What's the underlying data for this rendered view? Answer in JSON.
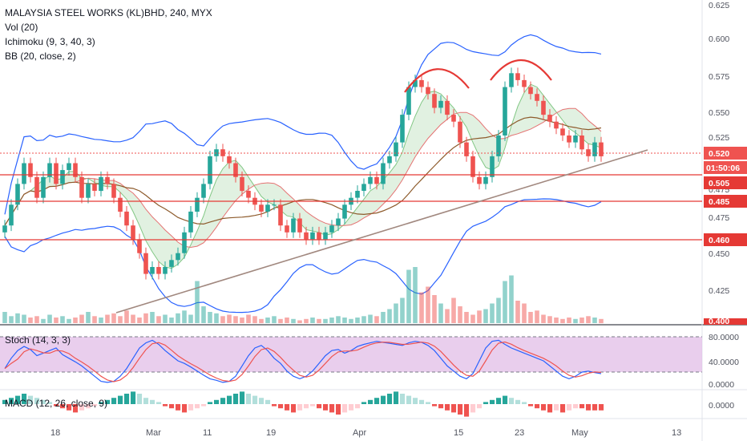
{
  "colors": {
    "up": "#26a69a",
    "down": "#ef5350",
    "bb": "#2962ff",
    "bb_basis": "#8d5a2b",
    "cloud_green": "#c8e6c9",
    "cloud_red": "#ffcdd2",
    "stoch_band": "#e1bee7",
    "support_line": "#e53935",
    "trend_line": "#a1887f",
    "head_shoulder": "#e53935",
    "price_tag": "#ef5350"
  },
  "legend": {
    "symbol": "MALAYSIA STEEL WORKS (KL)BHD, 240, MYX",
    "vol": "Vol (20)",
    "ichimoku": "Ichimoku (9, 3, 40, 3)",
    "bb": "BB (20, close, 2)"
  },
  "panes": {
    "stoch_label": "Stoch (14, 3, 3)",
    "macd_label": "MACD (12, 26, close, 9)"
  },
  "price_axis": [
    "0.625",
    "0.600",
    "0.575",
    "0.550",
    "0.525",
    "0.500",
    "0.475",
    "0.450",
    "0.425",
    "0.400"
  ],
  "price_tags": [
    {
      "label": "0.520",
      "value": 0.52
    },
    {
      "label": "01:50:06",
      "value": 0.512
    },
    {
      "label": "0.505",
      "value": 0.505
    },
    {
      "label": "0.485",
      "value": 0.485
    },
    {
      "label": "0.460",
      "value": 0.46
    }
  ],
  "stoch_axis": [
    "80.0000",
    "40.0000",
    "0.0000"
  ],
  "macd_axis": [
    "0.0000"
  ],
  "x_axis": [
    "18",
    "Mar",
    "11",
    "19",
    "Apr",
    "15",
    "23",
    "May",
    "13"
  ],
  "chart_data": {
    "type": "candlestick",
    "title": "MALAYSIA STEEL WORKS (KL)BHD, 240, MYX",
    "ylim": [
      0.4,
      0.63
    ],
    "horizontal_levels": [
      0.505,
      0.485,
      0.46
    ],
    "last_price": 0.52,
    "ohlc_close": [
      0.47,
      0.485,
      0.5,
      0.515,
      0.505,
      0.49,
      0.505,
      0.515,
      0.5,
      0.51,
      0.515,
      0.505,
      0.49,
      0.5,
      0.495,
      0.505,
      0.5,
      0.49,
      0.48,
      0.47,
      0.46,
      0.45,
      0.435,
      0.44,
      0.435,
      0.44,
      0.445,
      0.45,
      0.465,
      0.48,
      0.49,
      0.5,
      0.52,
      0.525,
      0.52,
      0.515,
      0.505,
      0.495,
      0.49,
      0.485,
      0.48,
      0.485,
      0.485,
      0.47,
      0.465,
      0.475,
      0.465,
      0.46,
      0.465,
      0.46,
      0.465,
      0.47,
      0.475,
      0.485,
      0.49,
      0.495,
      0.5,
      0.505,
      0.5,
      0.515,
      0.52,
      0.53,
      0.55,
      0.57,
      0.575,
      0.57,
      0.565,
      0.555,
      0.56,
      0.55,
      0.545,
      0.53,
      0.52,
      0.505,
      0.5,
      0.505,
      0.52,
      0.535,
      0.57,
      0.58,
      0.575,
      0.57,
      0.565,
      0.56,
      0.55,
      0.545,
      0.54,
      0.535,
      0.53,
      0.535,
      0.525,
      0.52,
      0.53,
      0.52
    ],
    "volume": [
      8,
      5,
      7,
      6,
      4,
      5,
      3,
      6,
      4,
      5,
      3,
      4,
      6,
      8,
      5,
      4,
      6,
      7,
      5,
      9,
      6,
      4,
      7,
      8,
      5,
      6,
      4,
      7,
      9,
      6,
      30,
      12,
      8,
      7,
      5,
      6,
      5,
      4,
      6,
      5,
      3,
      4,
      5,
      3,
      4,
      3,
      2,
      3,
      4,
      3,
      3,
      4,
      5,
      4,
      3,
      4,
      5,
      6,
      5,
      8,
      10,
      14,
      18,
      38,
      40,
      22,
      26,
      20,
      14,
      10,
      18,
      12,
      8,
      6,
      9,
      10,
      14,
      18,
      30,
      34,
      16,
      14,
      8,
      9,
      6,
      5,
      4,
      3,
      4,
      3,
      4,
      5,
      4,
      3
    ],
    "stoch_k": [
      35,
      55,
      70,
      78,
      72,
      60,
      65,
      70,
      75,
      62,
      55,
      48,
      40,
      30,
      20,
      10,
      8,
      10,
      20,
      35,
      55,
      75,
      85,
      90,
      82,
      70,
      60,
      50,
      45,
      38,
      30,
      22,
      15,
      12,
      8,
      10,
      20,
      40,
      60,
      75,
      80,
      70,
      55,
      45,
      30,
      20,
      15,
      20,
      30,
      45,
      60,
      70,
      72,
      65,
      70,
      78,
      82,
      85,
      88,
      86,
      84,
      82,
      80,
      85,
      88,
      86,
      80,
      70,
      55,
      40,
      30,
      20,
      15,
      25,
      50,
      75,
      88,
      90,
      82,
      75,
      70,
      65,
      60,
      55,
      50,
      40,
      30,
      20,
      15,
      20,
      28,
      30,
      27,
      25
    ],
    "macd_hist": [
      2,
      3,
      4,
      5,
      4,
      3,
      2,
      1,
      -1,
      -2,
      -3,
      -4,
      -3,
      -2,
      -1,
      1,
      2,
      3,
      4,
      5,
      6,
      5,
      3,
      2,
      1,
      -1,
      -2,
      -3,
      -4,
      -3,
      -2,
      -1,
      1,
      2,
      3,
      4,
      5,
      6,
      5,
      4,
      3,
      2,
      -1,
      -2,
      -3,
      -4,
      -3,
      -2,
      -1,
      -2,
      -3,
      -4,
      -5,
      -4,
      -3,
      -2,
      1,
      2,
      3,
      4,
      5,
      6,
      5,
      4,
      3,
      2,
      1,
      -1,
      -2,
      -3,
      -4,
      -5,
      -6,
      -4,
      -2,
      1,
      2,
      3,
      4,
      3,
      2,
      1,
      -1,
      -2,
      -3,
      -4,
      -3,
      -4,
      -3,
      -2,
      -2,
      -3,
      -3,
      -3
    ]
  }
}
